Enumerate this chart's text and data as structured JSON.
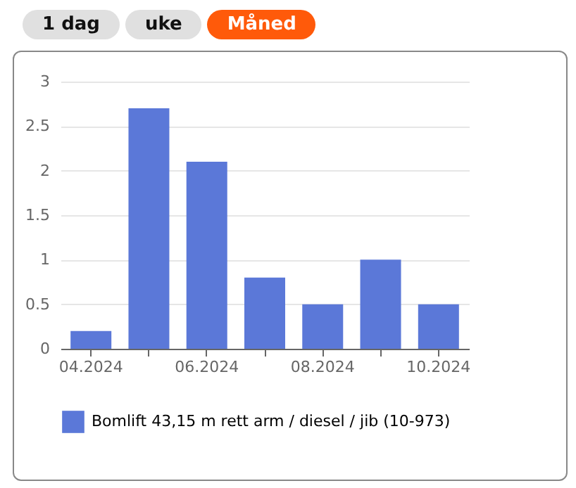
{
  "chart_data": {
    "type": "bar",
    "annotations": [
      "1 dag",
      "uke",
      "Måned"
    ],
    "categories": [
      "04.2024",
      null,
      "06.2024",
      null,
      "08.2024",
      null,
      "10.2024"
    ],
    "series": [
      {
        "name": "Bomlift 43,15 m rett arm / diesel / jib (10-973)",
        "color": "#5b78d8",
        "values": [
          0.2,
          2.7,
          2.1,
          0.8,
          0.5,
          1.0,
          0.5
        ]
      }
    ],
    "ylim": [
      0,
      3
    ],
    "yticks": [
      0,
      0.5,
      1,
      1.5,
      2,
      2.5,
      3
    ],
    "grid": "y",
    "legend": "bottom"
  }
}
